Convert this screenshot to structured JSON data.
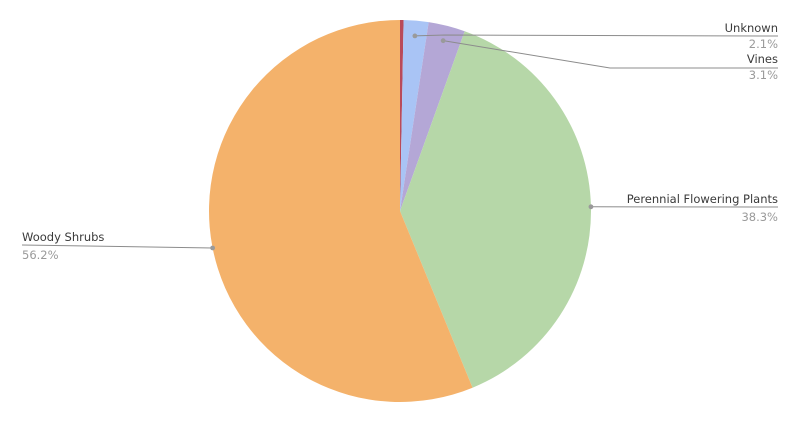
{
  "chart_data": {
    "type": "pie",
    "title": "",
    "slices": [
      {
        "name": "",
        "value": 0.3,
        "color": "#b94a5a"
      },
      {
        "name": "Unknown",
        "label": "2.1%",
        "value": 2.1,
        "color": "#a9c4f5"
      },
      {
        "name": "Vines",
        "label": "3.1%",
        "value": 3.1,
        "color": "#b4a7d6"
      },
      {
        "name": "Perennial Flowering Plants",
        "label": "38.3%",
        "value": 38.3,
        "color": "#b6d7a8"
      },
      {
        "name": "Woody Shrubs",
        "label": "56.2%",
        "value": 56.2,
        "color": "#f4b26b"
      }
    ],
    "start_angle": "12 o'clock",
    "direction": "clockwise",
    "legend": "none",
    "grid": false
  }
}
